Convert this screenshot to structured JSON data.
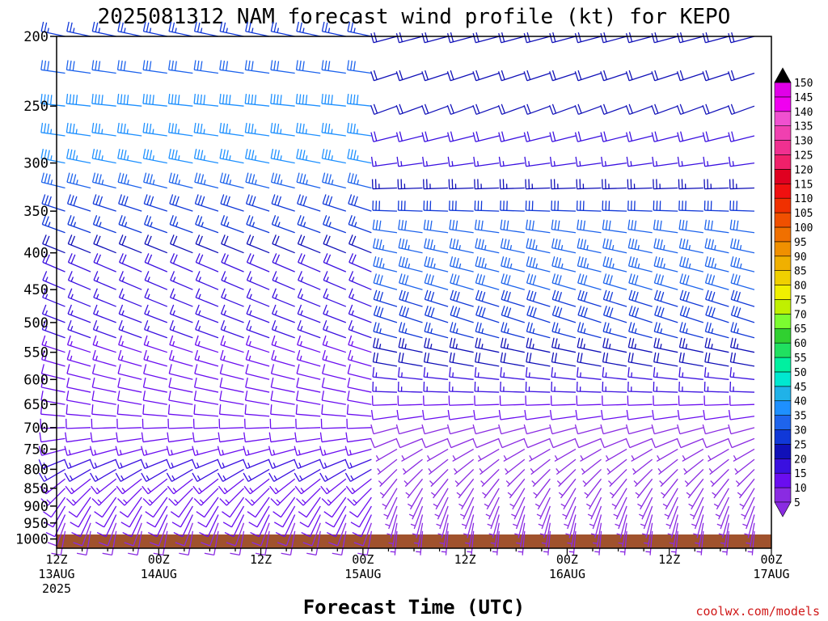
{
  "chart_data": {
    "type": "wind-barb-timeseries",
    "title": "2025081312 NAM forecast wind profile (kt) for KEPO",
    "xlabel": "Forecast Time (UTC)",
    "ylabel": "",
    "credit": "coolwx.com/models",
    "x_ticks": [
      {
        "hour": 0,
        "lines": [
          "12Z",
          "13AUG",
          "2025"
        ]
      },
      {
        "hour": 12,
        "lines": [
          "00Z",
          "14AUG"
        ]
      },
      {
        "hour": 24,
        "lines": [
          "12Z"
        ]
      },
      {
        "hour": 36,
        "lines": [
          "00Z",
          "15AUG"
        ]
      },
      {
        "hour": 48,
        "lines": [
          "12Z"
        ]
      },
      {
        "hour": 60,
        "lines": [
          "00Z",
          "16AUG"
        ]
      },
      {
        "hour": 72,
        "lines": [
          "12Z"
        ]
      },
      {
        "hour": 84,
        "lines": [
          "00Z",
          "17AUG"
        ]
      }
    ],
    "xlim_hours": [
      0,
      84
    ],
    "y_ticks_hpa": [
      200,
      250,
      300,
      350,
      400,
      450,
      500,
      550,
      600,
      650,
      700,
      750,
      800,
      850,
      900,
      950,
      1000
    ],
    "ylim_hpa": [
      200,
      1030
    ],
    "y_scale": "log-pressure",
    "colorbar": {
      "label_values": [
        5,
        10,
        15,
        20,
        25,
        30,
        35,
        40,
        45,
        50,
        55,
        60,
        65,
        70,
        75,
        80,
        85,
        90,
        95,
        100,
        105,
        110,
        115,
        120,
        125,
        130,
        135,
        140,
        145,
        150
      ],
      "colors": [
        "#8a2be2",
        "#6a0df0",
        "#3a10e0",
        "#1010b8",
        "#1038d8",
        "#1e64ec",
        "#1e90ff",
        "#20b2e8",
        "#00e8d0",
        "#00f0a0",
        "#20e060",
        "#30d030",
        "#7cfc30",
        "#c0f000",
        "#f0f000",
        "#f0d000",
        "#f0b000",
        "#f09000",
        "#f07000",
        "#f05000",
        "#f03000",
        "#f01010",
        "#e00020",
        "#f0206a",
        "#f03090",
        "#f040b0",
        "#f050d0",
        "#f000f0",
        "#e000e8",
        "#000000"
      ]
    },
    "terrain_color": "#a0522d",
    "barb_time_step_hours": 3,
    "cutoff_hour": 39,
    "profile": {
      "levels_hpa": [
        200,
        225,
        250,
        275,
        300,
        325,
        350,
        375,
        400,
        425,
        450,
        475,
        500,
        525,
        550,
        575,
        600,
        625,
        650,
        675,
        700,
        725,
        750,
        775,
        800,
        825,
        850,
        875,
        900,
        925,
        950,
        975,
        1000
      ],
      "segments": [
        {
          "from_hour": 0,
          "to_hour": 39,
          "speed_kt": [
            26,
            32,
            38,
            36,
            36,
            33,
            29,
            27,
            22,
            19,
            17,
            16,
            15,
            15,
            14,
            13,
            12,
            12,
            12,
            12,
            12,
            12,
            14,
            15,
            15,
            14,
            14,
            12,
            11,
            10,
            9,
            8,
            7
          ],
          "dir_deg": [
            282,
            278,
            276,
            278,
            281,
            284,
            288,
            290,
            292,
            293,
            293,
            292,
            291,
            290,
            288,
            286,
            284,
            282,
            280,
            275,
            268,
            262,
            255,
            248,
            240,
            232,
            225,
            215,
            210,
            205,
            200,
            190,
            180
          ]
        },
        {
          "from_hour": 39,
          "to_hour": 84,
          "speed_kt": [
            22,
            20,
            20,
            18,
            17,
            24,
            28,
            32,
            34,
            33,
            31,
            29,
            28,
            26,
            24,
            20,
            17,
            15,
            12,
            10,
            9,
            8,
            7,
            7,
            6,
            6,
            6,
            6,
            5,
            5,
            5,
            5,
            6
          ],
          "dir_deg": [
            255,
            252,
            250,
            256,
            262,
            268,
            272,
            278,
            282,
            284,
            286,
            287,
            288,
            285,
            282,
            280,
            276,
            272,
            268,
            262,
            255,
            248,
            240,
            232,
            225,
            218,
            210,
            205,
            200,
            195,
            190,
            185,
            180
          ]
        }
      ]
    }
  }
}
